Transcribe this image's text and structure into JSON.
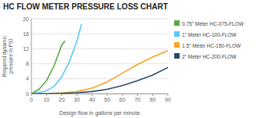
{
  "chart_data": {
    "type": "line",
    "title": "HC FLOW METER PRESSURE LOSS CHART",
    "xlabel": "Design flow in gallons per minute",
    "ylabel": "Required dynamic\npressure in PSI",
    "xlim": [
      0,
      90
    ],
    "ylim": [
      0,
      20
    ],
    "xticks": [
      0,
      10,
      20,
      30,
      40,
      50,
      60,
      70,
      80,
      90
    ],
    "yticks": [
      0,
      4,
      8,
      12,
      16,
      20
    ],
    "grid": true,
    "legend": "right",
    "series": [
      {
        "name": "0.75\" Meter HC-075-FLOW",
        "color": "#5aaa3f",
        "x": [
          0,
          5,
          10,
          15,
          20,
          22
        ],
        "values": [
          0,
          1.2,
          3.5,
          7.5,
          13.0,
          14.0
        ]
      },
      {
        "name": "1\" Meter HC-100-FLOW",
        "color": "#5bc8f5",
        "x": [
          0,
          5,
          10,
          15,
          20,
          25,
          30,
          33
        ],
        "values": [
          0,
          0.3,
          0.8,
          2.0,
          4.5,
          8.5,
          14.0,
          18.5
        ]
      },
      {
        "name": "1.5\" Meter HC-150-FLOW",
        "color": "#f5a623",
        "x": [
          0,
          10,
          20,
          30,
          40,
          50,
          60,
          70,
          80,
          90
        ],
        "values": [
          0,
          0.05,
          0.2,
          0.6,
          1.5,
          3.2,
          5.5,
          7.8,
          9.8,
          11.5
        ]
      },
      {
        "name": "2\" Meter HC-200-FLOW",
        "color": "#2c4a6e",
        "x": [
          0,
          10,
          20,
          30,
          40,
          50,
          60,
          70,
          80,
          90
        ],
        "values": [
          0,
          0.02,
          0.1,
          0.25,
          0.6,
          1.2,
          2.2,
          3.5,
          5.0,
          7.0
        ]
      }
    ]
  }
}
